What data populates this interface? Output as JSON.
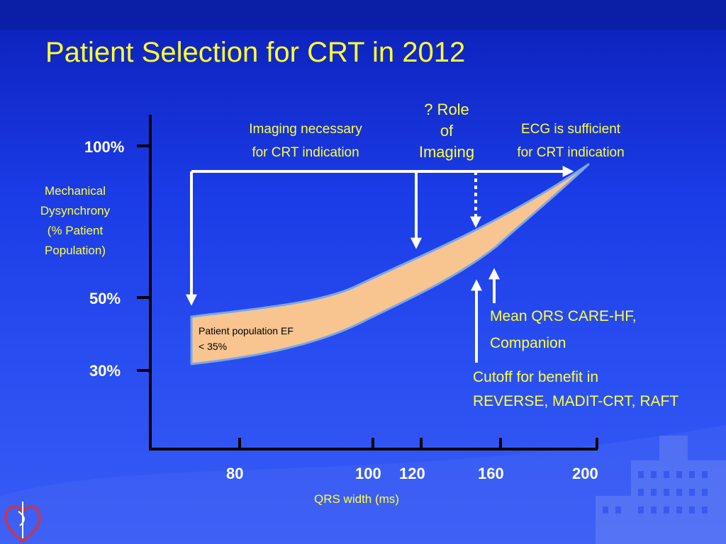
{
  "title": "Patient Selection for CRT in 2012",
  "y_axis": {
    "label_lines": [
      "Mechanical",
      "Dysynchrony",
      "(% Patient",
      "Population)"
    ],
    "ticks": [
      "100%",
      "50%",
      "30%"
    ]
  },
  "x_axis": {
    "label": "QRS width (ms)",
    "ticks": [
      "80",
      "100",
      "120",
      "160",
      "200"
    ]
  },
  "annotations": {
    "imaging_necessary": [
      "Imaging necessary",
      "for CRT indication"
    ],
    "role_of_imaging": [
      "? Role",
      "of",
      "Imaging"
    ],
    "ecg_sufficient": [
      "ECG is sufficient",
      "for CRT indication"
    ],
    "band_label": [
      "Patient population EF",
      "< 35%"
    ],
    "mean_qrs": [
      "Mean QRS CARE-HF,",
      "Companion"
    ],
    "cutoff": [
      "Cutoff for benefit in",
      "REVERSE, MADIT-CRT, RAFT"
    ]
  },
  "colors": {
    "background": "#1a3be6",
    "title": "#ffff33",
    "annotation_text": "#ffff44",
    "band_fill": "#f8c490",
    "band_outline": "#7aa6e6",
    "axis": "#000000",
    "arrows": "#ffffff"
  },
  "icons": [
    "heart-logo-icon",
    "building-watermark-icon"
  ]
}
